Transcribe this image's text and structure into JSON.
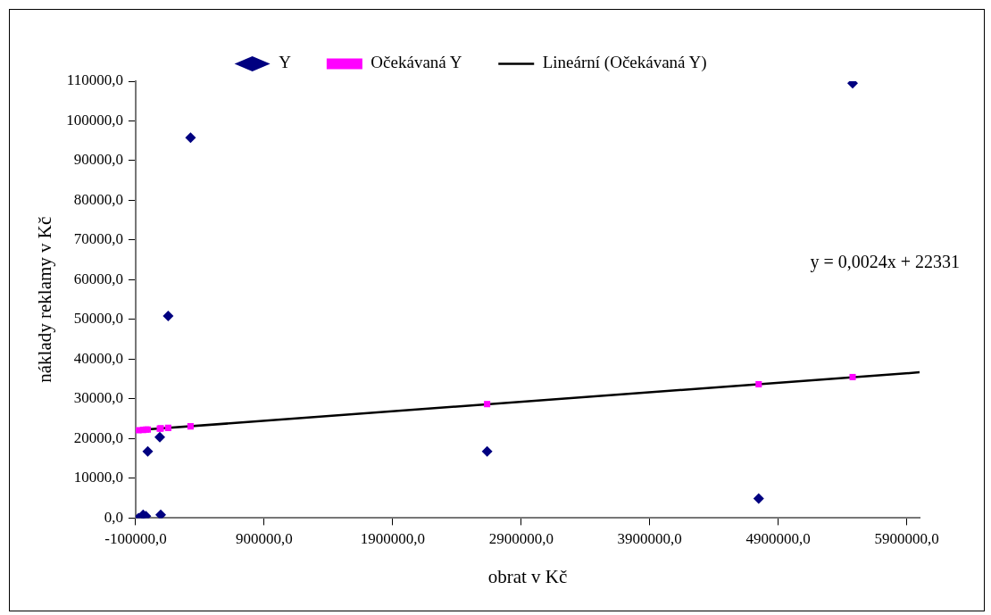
{
  "chart_data": {
    "type": "scatter",
    "xlabel": "obrat v Kč",
    "ylabel": "náklady reklamy v Kč",
    "annotations": [
      "y = 0,0024x + 22331"
    ],
    "xlim": [
      -100000,
      6000000
    ],
    "xticks": [
      {
        "value": -100000,
        "label": "-100000,0"
      },
      {
        "value": 900000,
        "label": "900000,0"
      },
      {
        "value": 1900000,
        "label": "1900000,0"
      },
      {
        "value": 2900000,
        "label": "2900000,0"
      },
      {
        "value": 3900000,
        "label": "3900000,0"
      },
      {
        "value": 4900000,
        "label": "4900000,0"
      },
      {
        "value": 5900000,
        "label": "5900000,0"
      }
    ],
    "ylim": [
      0,
      110000
    ],
    "yticks": [
      {
        "value": 0,
        "label": "0,0"
      },
      {
        "value": 10000,
        "label": "10000,0"
      },
      {
        "value": 20000,
        "label": "20000,0"
      },
      {
        "value": 30000,
        "label": "30000,0"
      },
      {
        "value": 40000,
        "label": "40000,0"
      },
      {
        "value": 50000,
        "label": "50000,0"
      },
      {
        "value": 60000,
        "label": "60000,0"
      },
      {
        "value": 70000,
        "label": "70000,0"
      },
      {
        "value": 80000,
        "label": "80000,0"
      },
      {
        "value": 90000,
        "label": "90000,0"
      },
      {
        "value": 100000,
        "label": "100000,0"
      },
      {
        "value": 110000,
        "label": "110000,0"
      }
    ],
    "grid": false,
    "legend": "top",
    "series": [
      {
        "name": "Y",
        "marker": "diamond",
        "color": "#000080",
        "x": [
          -78000,
          -42000,
          -20000,
          95000,
          -6000,
          88000,
          153000,
          327000,
          2635000,
          4748000,
          5479000
        ],
        "values": [
          0,
          800,
          500,
          800,
          16800,
          20400,
          50900,
          95800,
          16800,
          4900,
          109500
        ]
      },
      {
        "name": "Očekávaná Y",
        "marker": "square",
        "color": "#ff00ff",
        "x": [
          -78000,
          -42000,
          -20000,
          95000,
          -6000,
          88000,
          153000,
          327000,
          2635000,
          4748000,
          5479000
        ],
        "values": [
          22100,
          22200,
          22300,
          22600,
          22300,
          22500,
          22700,
          23100,
          28700,
          33700,
          35500
        ]
      },
      {
        "name": "Lineární (Očekávaná Y)",
        "type": "line",
        "marker": "none",
        "color": "#000000",
        "x": [
          -100000,
          6000000
        ],
        "values": [
          22100,
          36700
        ]
      }
    ]
  }
}
